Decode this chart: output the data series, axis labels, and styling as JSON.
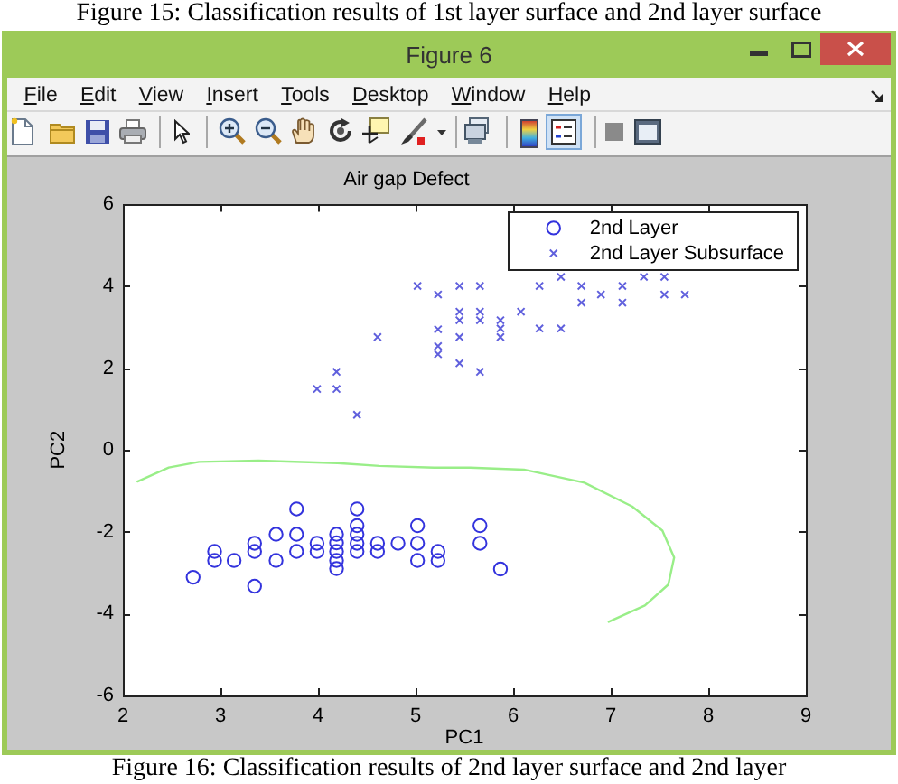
{
  "chart_data": [
    {
      "type": "scatter",
      "title": "Air gap Defect",
      "xlabel": "PC1",
      "ylabel": "PC2",
      "xlim": [
        2,
        9
      ],
      "xticks": [
        2,
        3,
        4,
        5,
        6,
        7,
        8,
        9
      ],
      "ylim": [
        -6,
        6
      ],
      "yticks": [
        -6,
        -4,
        -2,
        0,
        2,
        4,
        6
      ],
      "grid": false,
      "legend": "top right",
      "series": [
        {
          "name": "2nd Layer",
          "color": "#3333dd",
          "marker": "circle",
          "x": [
            2.72,
            2.94,
            2.94,
            3.14,
            3.35,
            3.35,
            3.35,
            3.57,
            3.57,
            3.78,
            3.78,
            3.78,
            3.99,
            3.99,
            4.19,
            4.19,
            4.19,
            4.19,
            4.19,
            4.4,
            4.4,
            4.4,
            4.4,
            4.4,
            4.61,
            4.61,
            4.82,
            5.02,
            5.02,
            5.02,
            5.23,
            5.23,
            5.66,
            5.66,
            5.87
          ],
          "values": [
            -3.11,
            -2.48,
            -2.7,
            -2.7,
            -2.28,
            -2.48,
            -3.33,
            -2.06,
            -2.7,
            -1.44,
            -2.06,
            -2.48,
            -2.28,
            -2.48,
            -2.06,
            -2.27,
            -2.48,
            -2.7,
            -2.9,
            -1.44,
            -1.85,
            -2.06,
            -2.28,
            -2.48,
            -2.28,
            -2.48,
            -2.28,
            -1.85,
            -2.28,
            -2.7,
            -2.48,
            -2.7,
            -1.85,
            -2.28,
            -2.91
          ]
        },
        {
          "name": "2nd Layer Subsurface",
          "color": "#6060dd",
          "marker": "cross",
          "x": [
            3.99,
            4.19,
            4.19,
            4.4,
            4.61,
            5.02,
            5.23,
            5.23,
            5.23,
            5.23,
            5.45,
            5.45,
            5.45,
            5.45,
            5.45,
            5.66,
            5.66,
            5.66,
            5.66,
            5.87,
            5.87,
            5.87,
            6.08,
            6.27,
            6.27,
            6.49,
            6.49,
            6.7,
            6.7,
            6.9,
            7.12,
            7.12,
            7.34,
            7.55,
            7.55,
            7.76
          ],
          "values": [
            1.49,
            1.91,
            1.49,
            0.86,
            2.76,
            4.01,
            3.8,
            2.95,
            2.54,
            2.34,
            4.01,
            3.38,
            3.17,
            2.76,
            2.12,
            4.01,
            3.38,
            3.17,
            1.91,
            3.17,
            2.97,
            2.76,
            3.38,
            4.01,
            2.97,
            4.23,
            2.97,
            4.01,
            3.6,
            3.8,
            4.01,
            3.6,
            4.23,
            4.23,
            3.8,
            3.8
          ]
        },
        {
          "type": "line",
          "color": "#99ee88",
          "marker": "none",
          "x": [
            2.15,
            2.47,
            2.78,
            3.39,
            4.2,
            4.63,
            5.19,
            5.56,
            6.11,
            6.73,
            7.22,
            7.53,
            7.65,
            7.59,
            7.35,
            6.98
          ],
          "values": [
            -0.77,
            -0.43,
            -0.29,
            -0.26,
            -0.32,
            -0.39,
            -0.43,
            -0.43,
            -0.48,
            -0.8,
            -1.38,
            -1.97,
            -2.63,
            -3.29,
            -3.8,
            -4.2
          ]
        }
      ],
      "annotations": [
        "Figure 15: Classification results of 1st layer surface and 2nd layer surface",
        "Figure 16: Classification results of 2nd layer surface and 2nd layer"
      ]
    },
    {
      "type": "other",
      "title": "Figure 6",
      "annotations": [
        "File",
        "Edit",
        "View",
        "Insert",
        "Tools",
        "Desktop",
        "Window",
        "Help"
      ]
    }
  ]
}
